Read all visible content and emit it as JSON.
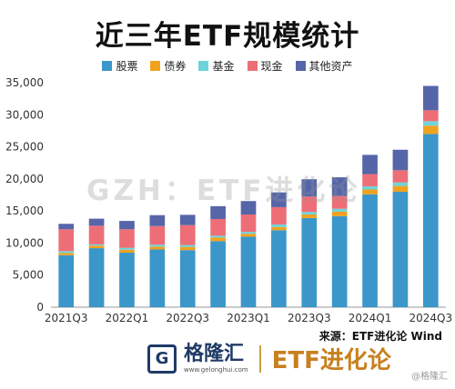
{
  "page": {
    "title": "近三年ETF规模统计",
    "watermark": "GZH：ETF进化论",
    "source": "来源：ETF进化论 Wind",
    "brand_name": "格隆汇",
    "brand_url": "www.gelonghui.com",
    "brand2": "ETF进化论",
    "corner_tag": "@格隆汇"
  },
  "chart_data": {
    "type": "bar",
    "stacked": true,
    "ylim": [
      0,
      35000
    ],
    "yticks": [
      0,
      5000,
      10000,
      15000,
      20000,
      25000,
      30000,
      35000
    ],
    "ytick_labels": [
      "0",
      "5,000",
      "10,000",
      "15,000",
      "20,000",
      "25,000",
      "30,000",
      "35,000"
    ],
    "categories": [
      "2021Q3",
      "2021Q4",
      "2022Q1",
      "2022Q2",
      "2022Q3",
      "2022Q4",
      "2023Q1",
      "2023Q2",
      "2023Q3",
      "2023Q4",
      "2024Q1",
      "2024Q2",
      "2024Q3"
    ],
    "xtick_labels": [
      "2021Q3",
      "2022Q1",
      "2022Q3",
      "2023Q1",
      "2023Q3",
      "2024Q1",
      "2024Q3"
    ],
    "series": [
      {
        "name": "股票",
        "color": "#3b97c9",
        "values": [
          8100,
          9200,
          8500,
          9000,
          8900,
          10300,
          11000,
          12000,
          13900,
          14200,
          17600,
          18000,
          27000
        ]
      },
      {
        "name": "债券",
        "color": "#f0a21f",
        "values": [
          350,
          400,
          450,
          450,
          500,
          550,
          450,
          500,
          550,
          700,
          750,
          900,
          1300
        ]
      },
      {
        "name": "基金",
        "color": "#6fd3d9",
        "values": [
          300,
          200,
          300,
          300,
          300,
          300,
          300,
          400,
          400,
          450,
          500,
          550,
          700
        ]
      },
      {
        "name": "现金",
        "color": "#ee6e77",
        "values": [
          3400,
          2900,
          2900,
          2900,
          3100,
          2600,
          2700,
          2700,
          2400,
          2000,
          1900,
          1900,
          1700
        ]
      },
      {
        "name": "其他资产",
        "color": "#5565a8",
        "values": [
          850,
          1100,
          1300,
          1700,
          1600,
          2000,
          2100,
          2300,
          2700,
          2900,
          3000,
          3200,
          3800
        ]
      }
    ]
  }
}
